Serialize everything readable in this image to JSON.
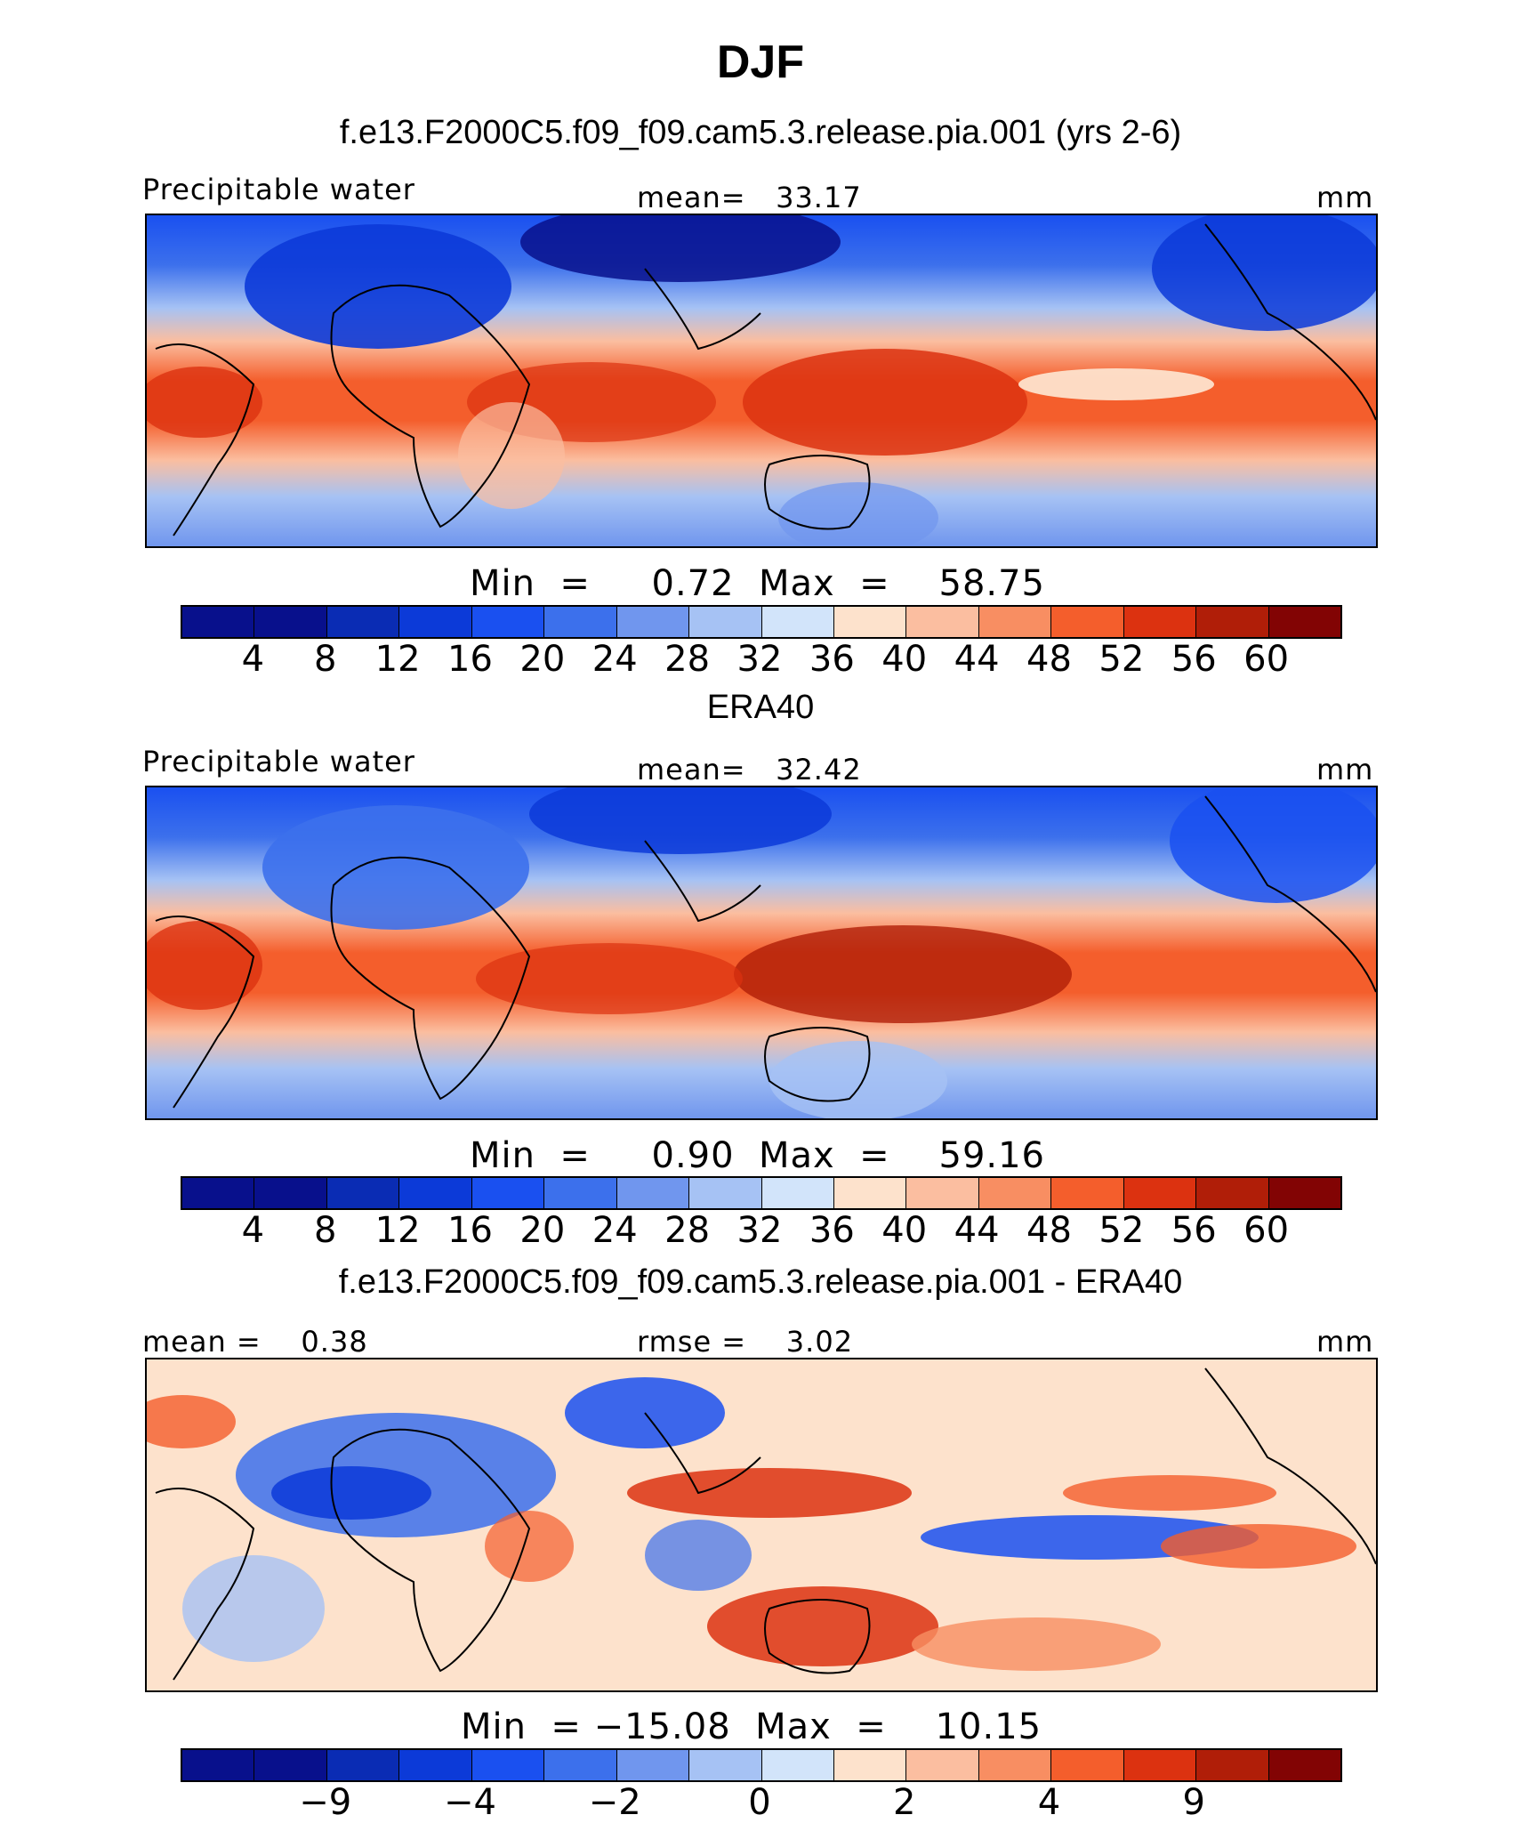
{
  "figure": {
    "title": "DJF"
  },
  "colors": {
    "abs_levels": [
      "#08108c",
      "#0a2cb4",
      "#0c3ad8",
      "#1a50f0",
      "#3c70ec",
      "#7096ee",
      "#a6c2f4",
      "#d2e4fa",
      "#fde2cc",
      "#fbbea0",
      "#f88e62",
      "#f45e2c",
      "#dc3210",
      "#b01e08",
      "#820404"
    ],
    "diff_levels": [
      "#08108c",
      "#0a2cb4",
      "#0c3ad8",
      "#1a50f0",
      "#3c70ec",
      "#7096ee",
      "#a6c2f4",
      "#d2e4fa",
      "#fde2cc",
      "#fbbea0",
      "#f88e62",
      "#f45e2c",
      "#dc3210",
      "#b01e08",
      "#820404"
    ]
  },
  "chart_data": [
    {
      "type": "heatmap",
      "title": "f.e13.F2000C5.f09_f09.cam5.3.release.pia.001 (yrs 2-6)",
      "left_label": "Precipitable water",
      "center_label": "mean=   33.17",
      "units": "mm",
      "min_max": "Min  =     0.72  Max  =    58.75",
      "min": 0.72,
      "max": 58.75,
      "mean": 33.17,
      "levels": [
        4,
        8,
        12,
        16,
        20,
        24,
        28,
        32,
        36,
        40,
        44,
        48,
        52,
        56,
        60
      ],
      "tick_labels": [
        "4",
        "8",
        "12",
        "16",
        "20",
        "24",
        "28",
        "32",
        "36",
        "40",
        "44",
        "48",
        "52",
        "56",
        "60"
      ]
    },
    {
      "type": "heatmap",
      "title": "ERA40",
      "left_label": "Precipitable water",
      "center_label": "mean=   32.42",
      "units": "mm",
      "min_max": "Min  =     0.90  Max  =    59.16",
      "min": 0.9,
      "max": 59.16,
      "mean": 32.42,
      "levels": [
        4,
        8,
        12,
        16,
        20,
        24,
        28,
        32,
        36,
        40,
        44,
        48,
        52,
        56,
        60
      ],
      "tick_labels": [
        "4",
        "8",
        "12",
        "16",
        "20",
        "24",
        "28",
        "32",
        "36",
        "40",
        "44",
        "48",
        "52",
        "56",
        "60"
      ]
    },
    {
      "type": "heatmap",
      "title": "f.e13.F2000C5.f09_f09.cam5.3.release.pia.001 - ERA40",
      "left_label": "mean =    0.38",
      "center_label": "rmse =    3.02",
      "units": "mm",
      "min_max": "Min  = −15.08  Max  =    10.15",
      "min": -15.08,
      "max": 10.15,
      "mean": 0.38,
      "rmse": 3.02,
      "levels": [
        -9,
        -4,
        -2,
        0,
        2,
        4,
        9
      ],
      "tick_labels": [
        "−9",
        "−4",
        "−2",
        "0",
        "2",
        "4",
        "9"
      ]
    }
  ]
}
